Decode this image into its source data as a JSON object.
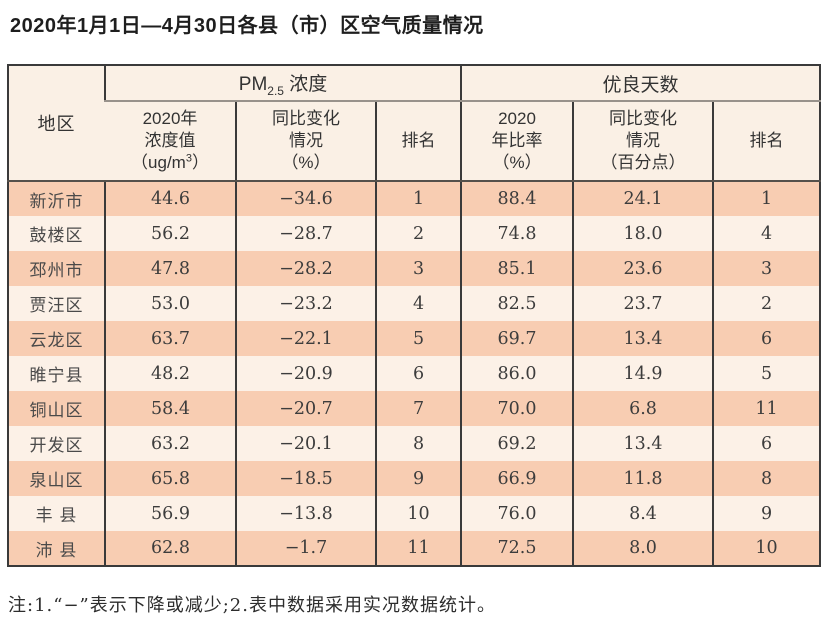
{
  "title": "2020年1月1日—4月30日各县（市）区空气质量情况",
  "table": {
    "region_col": "地区",
    "pm_group": {
      "prefix": "PM",
      "subscript": "2.5",
      "suffix": " 浓度"
    },
    "days_group": "优良天数",
    "headers": {
      "pm_value_lines": "2020年\n浓度值",
      "pm_value_unit_prefix": "（ug/m",
      "pm_value_unit_sup": "3",
      "pm_value_unit_suffix": "）",
      "pm_change": "同比变化\n情况\n（%）",
      "pm_rank": "排名",
      "days_rate": "2020\n年比率\n（%）",
      "days_change": "同比变化\n情况\n（百分点）",
      "days_rank": "排名"
    },
    "rows": [
      {
        "region": "新沂市",
        "pm_value": "44.6",
        "pm_change": "−34.6",
        "pm_rank": "1",
        "days_rate": "88.4",
        "days_change": "24.1",
        "days_rank": "1"
      },
      {
        "region": "鼓楼区",
        "pm_value": "56.2",
        "pm_change": "−28.7",
        "pm_rank": "2",
        "days_rate": "74.8",
        "days_change": "18.0",
        "days_rank": "4"
      },
      {
        "region": "邳州市",
        "pm_value": "47.8",
        "pm_change": "−28.2",
        "pm_rank": "3",
        "days_rate": "85.1",
        "days_change": "23.6",
        "days_rank": "3"
      },
      {
        "region": "贾汪区",
        "pm_value": "53.0",
        "pm_change": "−23.2",
        "pm_rank": "4",
        "days_rate": "82.5",
        "days_change": "23.7",
        "days_rank": "2"
      },
      {
        "region": "云龙区",
        "pm_value": "63.7",
        "pm_change": "−22.1",
        "pm_rank": "5",
        "days_rate": "69.7",
        "days_change": "13.4",
        "days_rank": "6"
      },
      {
        "region": "睢宁县",
        "pm_value": "48.2",
        "pm_change": "−20.9",
        "pm_rank": "6",
        "days_rate": "86.0",
        "days_change": "14.9",
        "days_rank": "5"
      },
      {
        "region": "铜山区",
        "pm_value": "58.4",
        "pm_change": "−20.7",
        "pm_rank": "7",
        "days_rate": "70.0",
        "days_change": "6.8",
        "days_rank": "11"
      },
      {
        "region": "开发区",
        "pm_value": "63.2",
        "pm_change": "−20.1",
        "pm_rank": "8",
        "days_rate": "69.2",
        "days_change": "13.4",
        "days_rank": "6"
      },
      {
        "region": "泉山区",
        "pm_value": "65.8",
        "pm_change": "−18.5",
        "pm_rank": "9",
        "days_rate": "66.9",
        "days_change": "11.8",
        "days_rank": "8"
      },
      {
        "region": "丰 县",
        "pm_value": "56.9",
        "pm_change": "−13.8",
        "pm_rank": "10",
        "days_rate": "76.0",
        "days_change": "8.4",
        "days_rank": "9"
      },
      {
        "region": "沛 县",
        "pm_value": "62.8",
        "pm_change": "−1.7",
        "pm_rank": "11",
        "days_rate": "72.5",
        "days_change": "8.0",
        "days_rank": "10"
      }
    ]
  },
  "note": "注:1.“−”表示下降或减少;2.表中数据采用实况数据统计。",
  "colors": {
    "row_odd": "#f8cdb2",
    "row_even": "#fcf1e7",
    "header_bg": "#faf0e5",
    "grid_dark": "#3a3a3a",
    "grid_gray": "#98928b"
  }
}
